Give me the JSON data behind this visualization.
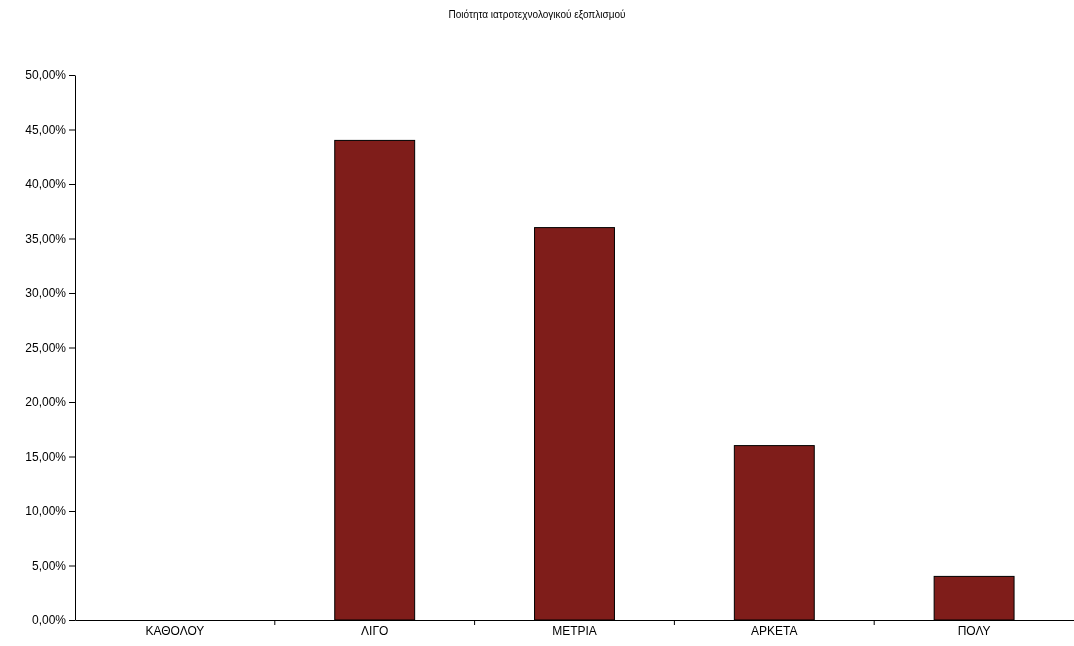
{
  "chart_data": {
    "type": "bar",
    "title": "Ποιότητα ιατροτεχνολογικού εξοπλισμού",
    "categories": [
      "ΚΑΘΟΛΟΥ",
      "ΛΙΓΟ",
      "ΜΕΤΡΙΑ",
      "ΑΡΚΕΤΑ",
      "ΠΟΛΥ"
    ],
    "values": [
      0,
      44,
      36,
      16,
      4
    ],
    "color": "#7f1d1a",
    "ylim": [
      0,
      50
    ],
    "yticks": [
      {
        "value": 0,
        "label": "0,00%"
      },
      {
        "value": 5,
        "label": "5,00%"
      },
      {
        "value": 10,
        "label": "10,00%"
      },
      {
        "value": 15,
        "label": "15,00%"
      },
      {
        "value": 20,
        "label": "20,00%"
      },
      {
        "value": 25,
        "label": "25,00%"
      },
      {
        "value": 30,
        "label": "30,00%"
      },
      {
        "value": 35,
        "label": "35,00%"
      },
      {
        "value": 40,
        "label": "40,00%"
      },
      {
        "value": 45,
        "label": "45,00%"
      },
      {
        "value": 50,
        "label": "50,00%"
      }
    ],
    "grid": false
  }
}
